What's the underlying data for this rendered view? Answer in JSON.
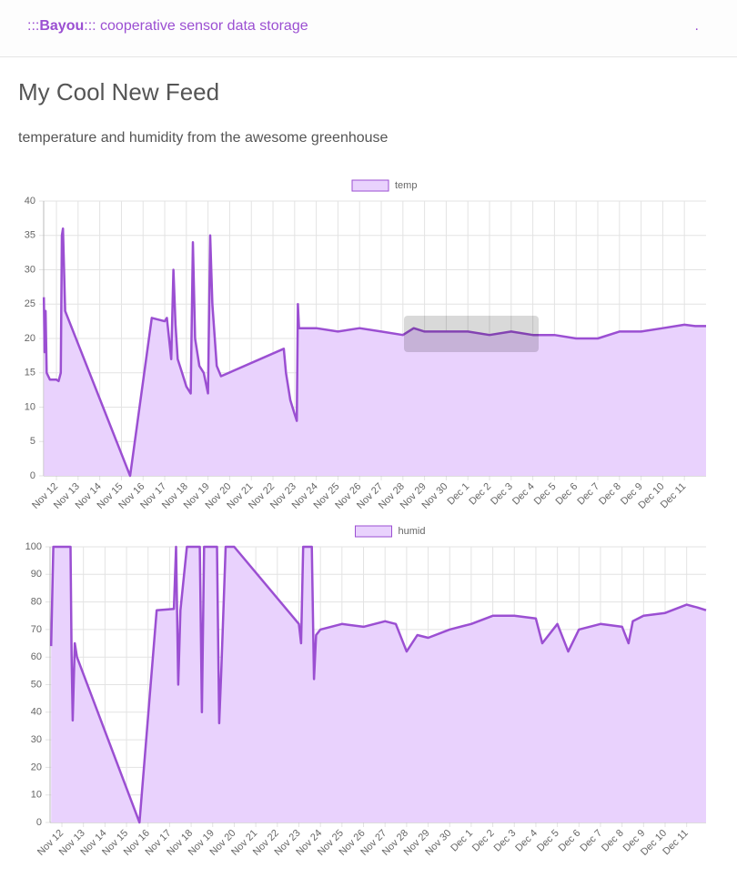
{
  "nav": {
    "brand": [
      ":::",
      "Bayou",
      "::: cooperative sensor data storage"
    ],
    "right": "."
  },
  "feed": {
    "title": "My Cool New Feed",
    "description": "temperature and humidity from the awesome greenhouse"
  },
  "chart_data": [
    {
      "type": "line",
      "color": "#9b4fd2",
      "fill": "#e9d2fd",
      "grid": true,
      "legend": "top",
      "xlim": [
        -0.59,
        30.0
      ],
      "ylim": [
        0,
        40
      ],
      "yticks": [
        0,
        5,
        10,
        15,
        20,
        25,
        30,
        35,
        40
      ],
      "xticks": [
        {
          "value": 0,
          "label": "Nov 12"
        },
        {
          "value": 1,
          "label": "Nov 13"
        },
        {
          "value": 2,
          "label": "Nov 14"
        },
        {
          "value": 3,
          "label": "Nov 15"
        },
        {
          "value": 4,
          "label": "Nov 16"
        },
        {
          "value": 5,
          "label": "Nov 17"
        },
        {
          "value": 6,
          "label": "Nov 18"
        },
        {
          "value": 7,
          "label": "Nov 19"
        },
        {
          "value": 8,
          "label": "Nov 20"
        },
        {
          "value": 9,
          "label": "Nov 21"
        },
        {
          "value": 10,
          "label": "Nov 22"
        },
        {
          "value": 11,
          "label": "Nov 23"
        },
        {
          "value": 12,
          "label": "Nov 24"
        },
        {
          "value": 13,
          "label": "Nov 25"
        },
        {
          "value": 14,
          "label": "Nov 26"
        },
        {
          "value": 15,
          "label": "Nov 27"
        },
        {
          "value": 16,
          "label": "Nov 28"
        },
        {
          "value": 17,
          "label": "Nov 29"
        },
        {
          "value": 18,
          "label": "Nov 30"
        },
        {
          "value": 19,
          "label": "Dec 1"
        },
        {
          "value": 20,
          "label": "Dec 2"
        },
        {
          "value": 21,
          "label": "Dec 3"
        },
        {
          "value": 22,
          "label": "Dec 4"
        },
        {
          "value": 23,
          "label": "Dec 5"
        },
        {
          "value": 24,
          "label": "Dec 6"
        },
        {
          "value": 25,
          "label": "Dec 7"
        },
        {
          "value": 26,
          "label": "Dec 8"
        },
        {
          "value": 27,
          "label": "Dec 9"
        },
        {
          "value": 28,
          "label": "Dec 10"
        },
        {
          "value": 29,
          "label": "Dec 11"
        }
      ],
      "x": [
        -0.58,
        -0.55,
        -0.5,
        -0.45,
        -0.3,
        0,
        0.1,
        0.2,
        0.25,
        0.3,
        0.35,
        0.4,
        3.4,
        4.4,
        5,
        5.1,
        5.3,
        5.4,
        5.5,
        5.6,
        5.8,
        6,
        6.2,
        6.3,
        6.4,
        6.6,
        6.8,
        7,
        7.1,
        7.2,
        7.4,
        7.6,
        10.5,
        10.6,
        10.8,
        11,
        11.1,
        11.15,
        11.2,
        12,
        13,
        14,
        15,
        16,
        16.5,
        17,
        18,
        19,
        20,
        21,
        22,
        23,
        24,
        25,
        26,
        27,
        28,
        29,
        29.5,
        30
      ],
      "series": [
        {
          "name": "temp",
          "values": [
            26,
            18,
            24,
            15,
            14,
            14,
            13.8,
            15,
            35,
            36,
            30,
            24,
            0,
            23,
            22.5,
            23,
            17,
            30,
            22,
            17,
            15,
            13,
            12,
            34,
            20,
            16,
            15,
            12,
            35,
            25,
            16,
            14.5,
            18.5,
            15,
            11,
            9,
            8,
            25,
            21.5,
            21.5,
            21,
            21.5,
            21,
            20.5,
            21.5,
            21,
            21,
            21,
            20.5,
            21,
            20.5,
            20.5,
            20,
            20,
            21,
            21,
            21.5,
            22,
            21.8,
            21.8
          ]
        }
      ]
    },
    {
      "type": "line",
      "color": "#9b4fd2",
      "fill": "#e9d2fd",
      "grid": true,
      "legend": "top",
      "xlim": [
        -0.55,
        29.9
      ],
      "ylim": [
        0,
        100
      ],
      "yticks": [
        0,
        10,
        20,
        30,
        40,
        50,
        60,
        70,
        80,
        90,
        100
      ],
      "xticks": [
        {
          "value": 0,
          "label": "Nov 12"
        },
        {
          "value": 1,
          "label": "Nov 13"
        },
        {
          "value": 2,
          "label": "Nov 14"
        },
        {
          "value": 3,
          "label": "Nov 15"
        },
        {
          "value": 4,
          "label": "Nov 16"
        },
        {
          "value": 5,
          "label": "Nov 17"
        },
        {
          "value": 6,
          "label": "Nov 18"
        },
        {
          "value": 7,
          "label": "Nov 19"
        },
        {
          "value": 8,
          "label": "Nov 20"
        },
        {
          "value": 9,
          "label": "Nov 21"
        },
        {
          "value": 10,
          "label": "Nov 22"
        },
        {
          "value": 11,
          "label": "Nov 23"
        },
        {
          "value": 12,
          "label": "Nov 24"
        },
        {
          "value": 13,
          "label": "Nov 25"
        },
        {
          "value": 14,
          "label": "Nov 26"
        },
        {
          "value": 15,
          "label": "Nov 27"
        },
        {
          "value": 16,
          "label": "Nov 28"
        },
        {
          "value": 17,
          "label": "Nov 29"
        },
        {
          "value": 18,
          "label": "Nov 30"
        },
        {
          "value": 19,
          "label": "Dec 1"
        },
        {
          "value": 20,
          "label": "Dec 2"
        },
        {
          "value": 21,
          "label": "Dec 3"
        },
        {
          "value": 22,
          "label": "Dec 4"
        },
        {
          "value": 23,
          "label": "Dec 5"
        },
        {
          "value": 24,
          "label": "Dec 6"
        },
        {
          "value": 25,
          "label": "Dec 7"
        },
        {
          "value": 26,
          "label": "Dec 8"
        },
        {
          "value": 27,
          "label": "Dec 9"
        },
        {
          "value": 28,
          "label": "Dec 10"
        },
        {
          "value": 29,
          "label": "Dec 11"
        }
      ],
      "x": [
        -0.5,
        -0.4,
        0.4,
        0.45,
        0.5,
        0.6,
        0.7,
        3.6,
        4.4,
        5.2,
        5.3,
        5.4,
        5.5,
        5.8,
        6.4,
        6.5,
        6.6,
        7.2,
        7.3,
        7.4,
        7.6,
        8,
        11,
        11.1,
        11.2,
        11.6,
        11.7,
        11.8,
        12,
        13,
        14,
        15,
        15.5,
        16,
        16.5,
        17,
        18,
        19,
        20,
        21,
        22,
        22.3,
        23,
        23.5,
        24,
        25,
        26,
        26.3,
        26.5,
        27,
        28,
        29,
        29.5,
        29.9
      ],
      "series": [
        {
          "name": "humid",
          "values": [
            64,
            100,
            100,
            60,
            37,
            65,
            60,
            0,
            77,
            77.5,
            100,
            50,
            77,
            100,
            100,
            40,
            100,
            100,
            36,
            55,
            100,
            100,
            72,
            65,
            100,
            100,
            52,
            68,
            70,
            72,
            71,
            73,
            72,
            62,
            68,
            67,
            70,
            72,
            75,
            75,
            74,
            65,
            72,
            62,
            70,
            72,
            71,
            65,
            73,
            75,
            76,
            79,
            78,
            77
          ]
        }
      ]
    }
  ]
}
